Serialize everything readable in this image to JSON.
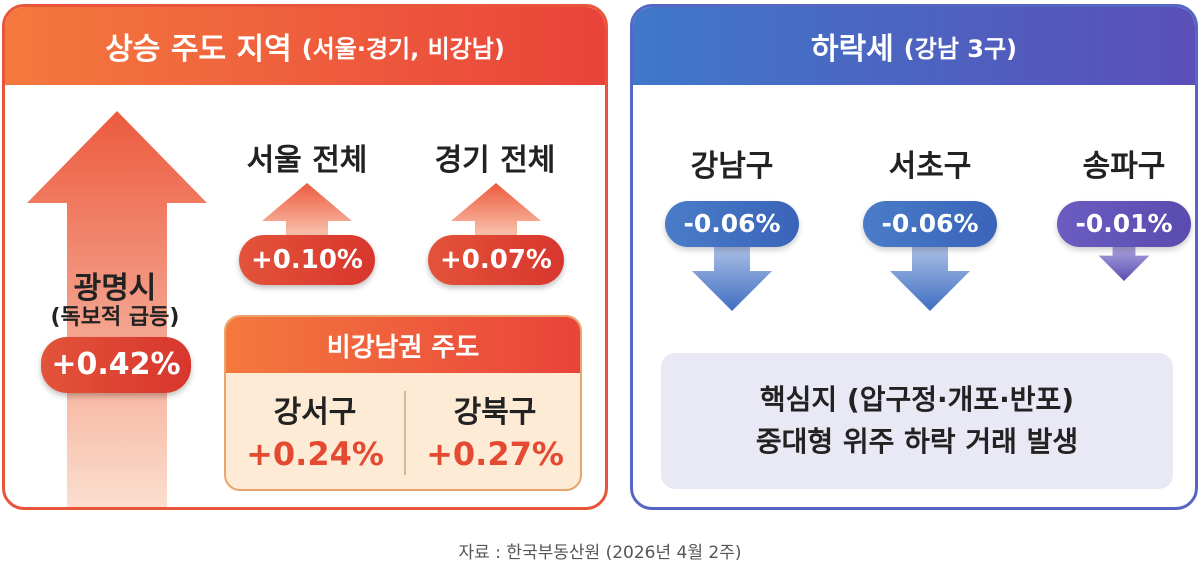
{
  "rising": {
    "header_main": "상승 주도 지역",
    "header_sub": "(서울·경기, 비강남)",
    "gwangmyeong": {
      "name": "광명시",
      "note": "(독보적 급등)",
      "change": "+0.42%"
    },
    "regions": [
      {
        "name": "서울 전체",
        "change": "+0.10%"
      },
      {
        "name": "경기 전체",
        "change": "+0.07%"
      }
    ],
    "non_gangnam": {
      "title": "비강남권 주도",
      "items": [
        {
          "name": "강서구",
          "change": "+0.24%"
        },
        {
          "name": "강북구",
          "change": "+0.27%"
        }
      ]
    },
    "colors": {
      "accent": "#e9553a",
      "value": "#e34a31"
    }
  },
  "falling": {
    "header_main": "하락세",
    "header_sub": "(강남 3구)",
    "districts": [
      {
        "name": "강남구",
        "change": "-0.06%"
      },
      {
        "name": "서초구",
        "change": "-0.06%"
      },
      {
        "name": "송파구",
        "change": "-0.01%"
      }
    ],
    "note_line1": "핵심지 (압구정·개포·반포)",
    "note_line2": "중대형 위주 하락 거래 발생",
    "colors": {
      "accent": "#5566c4"
    }
  },
  "source": "자료 : 한국부동산원 (2026년 4월 2주)"
}
